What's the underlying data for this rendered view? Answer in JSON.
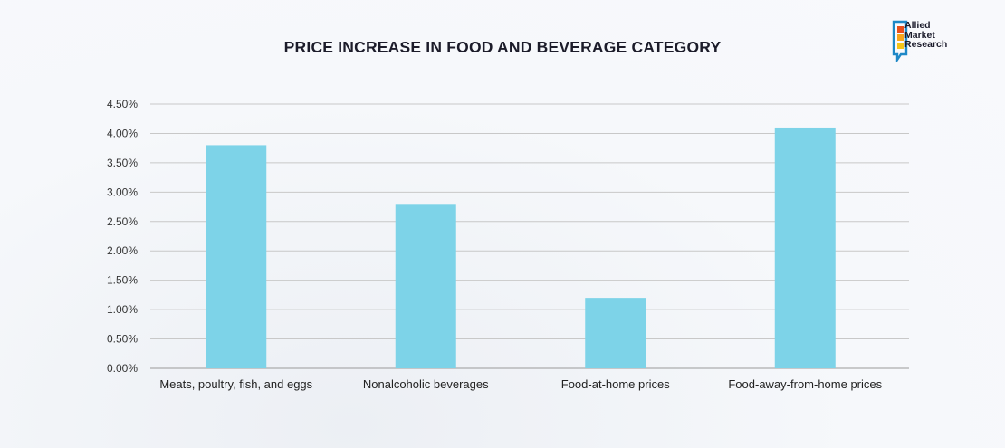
{
  "chart_data": {
    "type": "bar",
    "title": "PRICE INCREASE IN FOOD AND BEVERAGE CATEGORY",
    "xlabel": "",
    "ylabel": "",
    "categories": [
      "Meats, poultry, fish, and eggs",
      "Nonalcoholic beverages",
      "Food-at-home prices",
      "Food-away-from-home prices"
    ],
    "values": [
      3.8,
      2.8,
      1.2,
      4.1
    ],
    "value_unit": "%",
    "ylim": [
      0,
      4.5
    ],
    "yticks": [
      "0.00%",
      "0.50%",
      "1.00%",
      "1.50%",
      "2.00%",
      "2.50%",
      "3.00%",
      "3.50%",
      "4.00%",
      "4.50%"
    ],
    "grid": true,
    "legend": "none",
    "bar_color": "#7dd3e8"
  },
  "brand": {
    "line1": "Allied",
    "line2": "Market",
    "line3": "Research",
    "colors": [
      "#1e88c7",
      "#e94e1b",
      "#f7a51c",
      "#f5c518"
    ]
  }
}
